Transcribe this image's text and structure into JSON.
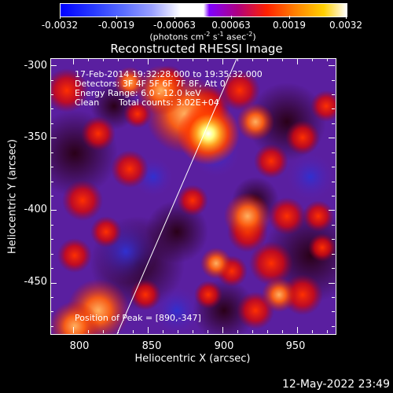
{
  "colorbar": {
    "ticks": [
      "-0.0032",
      "-0.0019",
      "-0.00063",
      "0.00063",
      "0.0019",
      "0.0032"
    ],
    "unit_text": "(photons cm",
    "unit_exp1": "-2",
    "unit_mid": " s",
    "unit_exp2": "-1",
    "unit_end": " asec",
    "unit_exp3": "-2",
    "unit_close": ")"
  },
  "title": "Reconstructed RHESSI Image",
  "info": {
    "time": "17-Feb-2014 19:32:28.000 to 19:35:32.000",
    "detectors": "Detectors: 3F 4F 5F 6F 7F 8F, Att 0",
    "energy": "Energy Range: 6.0 - 12.0 keV",
    "clean": "Clean",
    "counts": "Total counts: 3.02E+04",
    "peak": "Position of Peak = [890,-347]"
  },
  "axes": {
    "xlabel": "Heliocentric X (arcsec)",
    "ylabel": "Heliocentric Y (arcsec)",
    "xticks": [
      "800",
      "850",
      "900",
      "950"
    ],
    "yticks": [
      "-300",
      "-350",
      "-400",
      "-450"
    ]
  },
  "footer": {
    "timestamp": "12-May-2022 23:49"
  },
  "chart_data": {
    "type": "heatmap",
    "title": "Reconstructed RHESSI Image",
    "xlabel": "Heliocentric X (arcsec)",
    "ylabel": "Heliocentric Y (arcsec)",
    "xlim": [
      785,
      975
    ],
    "ylim": [
      -485,
      -295
    ],
    "peak": [
      890,
      -347
    ],
    "colorbar_range": [
      -0.0032,
      0.0032
    ]
  }
}
